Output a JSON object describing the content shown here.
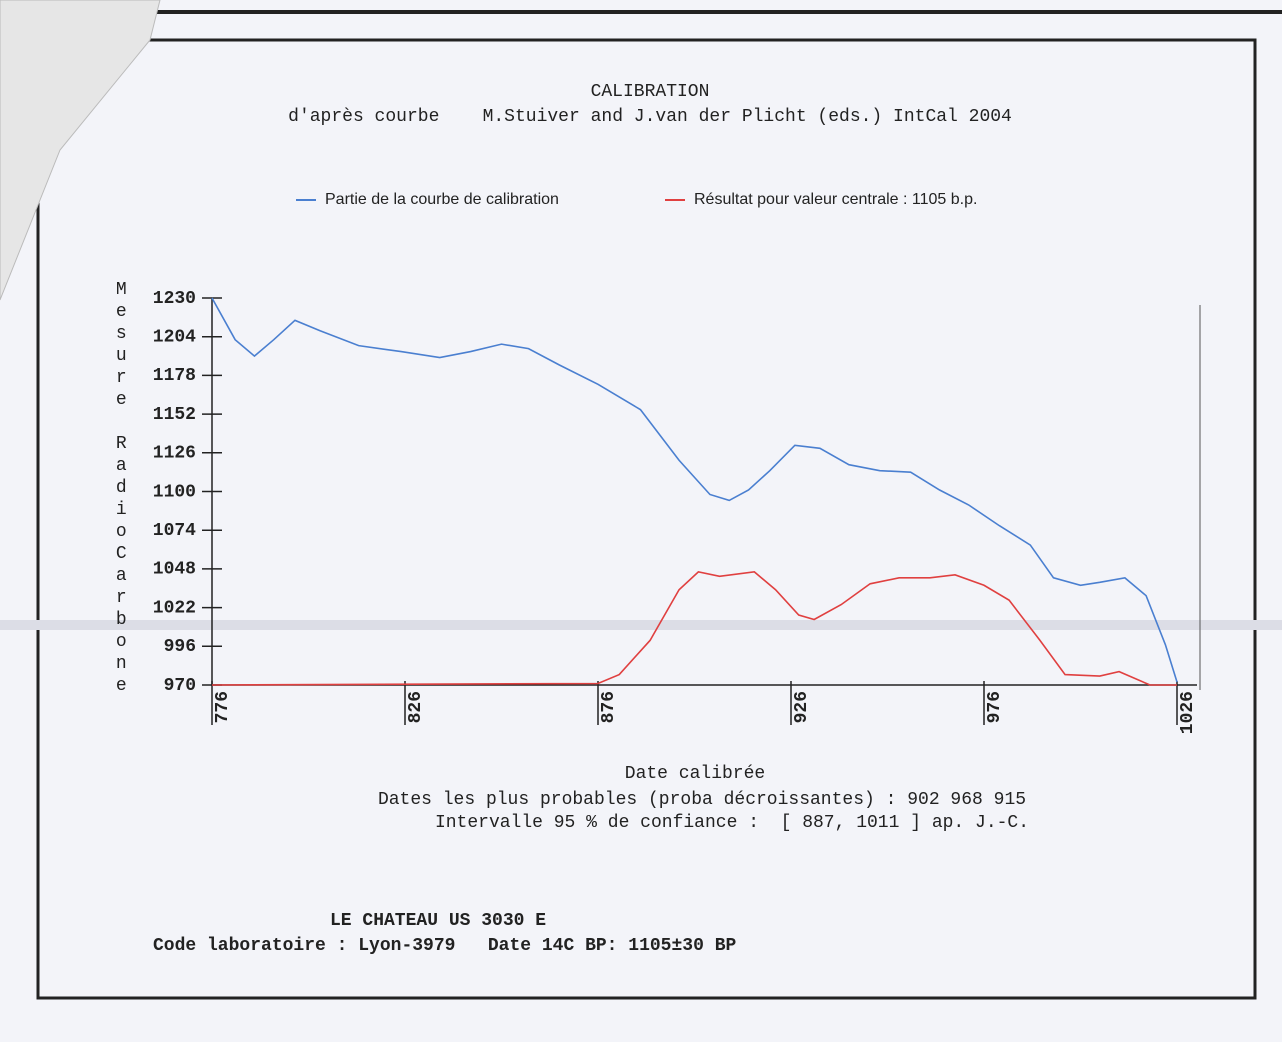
{
  "chart_data": {
    "type": "line",
    "title": "CALIBRATION",
    "subtitle": "d'après courbe    M.Stuiver and J.van der Plicht (eds.) IntCal 2004",
    "y_label": "Mesure RadioCarbone",
    "x_label": "Date calibrée",
    "notes": [
      "Dates les plus probables (proba décroissantes) : 902 968 915",
      "Intervalle 95 % de confiance :  [ 887, 1011 ] ap. J.-C.",
      "LE CHATEAU US 3030 E",
      "Code laboratoire : Lyon-3979   Date 14C BP: 1105±30 BP"
    ],
    "xlim": [
      776,
      1026
    ],
    "xticks": [
      776,
      826,
      876,
      926,
      976,
      1026
    ],
    "ylim": [
      970,
      1230
    ],
    "yticks": [
      970,
      996,
      1022,
      1048,
      1074,
      1100,
      1126,
      1152,
      1178,
      1204,
      1230
    ],
    "series": [
      {
        "name": "Partie de la courbe de calibration",
        "color": "#4a7fd0",
        "x": [
          776,
          782,
          787,
          792,
          797.5,
          804,
          814,
          825,
          835,
          843,
          851,
          858,
          866,
          876,
          887,
          897,
          905,
          910,
          915,
          920.5,
          927,
          933.5,
          941,
          949,
          957,
          964.5,
          972,
          980,
          988,
          994,
          1001,
          1006,
          1012.5,
          1018,
          1023,
          1026
        ],
        "values": [
          1230,
          1202,
          1191,
          1202,
          1215,
          1208,
          1198,
          1194,
          1190,
          1194,
          1199,
          1196,
          1185,
          1172,
          1155,
          1121,
          1098,
          1094,
          1101,
          1114,
          1131,
          1129,
          1118,
          1114,
          1113,
          1101,
          1091,
          1077,
          1064,
          1042,
          1037,
          1039,
          1042,
          1030,
          997,
          972
        ]
      },
      {
        "name": "Résultat pour valeur centrale : 1105 b.p.",
        "color": "#e04040",
        "x": [
          776,
          876,
          881.5,
          889.5,
          897,
          902,
          907.5,
          916.5,
          922,
          928,
          932,
          939,
          946.5,
          954,
          962,
          968.5,
          976,
          982.5,
          990.5,
          997,
          1006,
          1011,
          1019,
          1026
        ],
        "values": [
          970,
          971,
          977,
          1000,
          1034,
          1046,
          1043,
          1046,
          1034,
          1017,
          1014,
          1024,
          1038,
          1042,
          1042,
          1044,
          1037,
          1027,
          1000,
          977,
          976,
          979,
          970,
          970
        ]
      }
    ]
  }
}
